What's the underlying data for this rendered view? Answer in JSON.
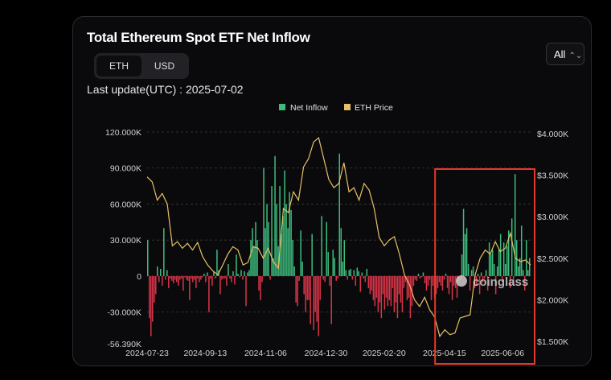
{
  "card": {
    "title": "Total Ethereum Spot ETF Net Inflow",
    "toggle": [
      "ETH",
      "USD"
    ],
    "toggle_selected": "ETH",
    "last_update": "Last update(UTC) : 2025-07-02",
    "range_select": "All",
    "watermark": "coinglass"
  },
  "chart_data": {
    "type": "bar+line",
    "legend": [
      {
        "name": "Net Inflow",
        "color": "#3dbd7d"
      },
      {
        "name": "ETH Price",
        "color": "#e6c065"
      }
    ],
    "legend_position": "top-center",
    "x_ticks": [
      "2024-07-23",
      "2024-09-13",
      "2024-11-06",
      "2024-12-30",
      "2025-02-20",
      "2025-04-15",
      "2025-06-06"
    ],
    "x_range": [
      "2024-07-23",
      "2025-07-01"
    ],
    "y_left": {
      "ticks": [
        "120.000K",
        "90.000K",
        "60.000K",
        "30.000K",
        "0",
        "-30.000K",
        "-56.390K"
      ],
      "range": [
        -56.39,
        120
      ],
      "unit": "K ETH"
    },
    "y_right": {
      "ticks": [
        "$4.000K",
        "$3.500K",
        "$3.000K",
        "$2.500K",
        "$2.000K",
        "$1.500K"
      ],
      "range": [
        1500,
        4000
      ],
      "unit": "USD"
    },
    "grid": true,
    "positive_color": "#3dbd7d",
    "negative_color": "#d93448",
    "highlight_box_color": "#e03a2a",
    "highlight_range": [
      "2025-04-08",
      "2025-07-01"
    ],
    "net_inflow": [
      30,
      -35,
      -50,
      -38,
      -22,
      -15,
      8,
      -5,
      6,
      -8,
      40,
      -3,
      5,
      -10,
      -2,
      -4,
      -6,
      -3,
      -5,
      -8,
      -3,
      -2,
      -12,
      -1,
      -3,
      -4,
      -20,
      -2,
      -5,
      -3,
      -10,
      -2,
      -5,
      -3,
      -1,
      2,
      -5,
      3,
      -30,
      -2,
      -8,
      4,
      -2,
      22,
      5,
      -15,
      -3,
      -2,
      -2,
      -8,
      10,
      -2,
      -5,
      4,
      -7,
      18,
      2,
      -1,
      5,
      -3,
      4,
      -25,
      3,
      5,
      30,
      40,
      25,
      45,
      30,
      -12,
      -20,
      -5,
      90,
      40,
      60,
      45,
      -3,
      75,
      15,
      100,
      60,
      25,
      75,
      35,
      50,
      88,
      60,
      40,
      70,
      55,
      30,
      8,
      -22,
      -25,
      -4,
      38,
      12,
      -15,
      -30,
      -20,
      -20,
      -40,
      35,
      -45,
      -30,
      -38,
      -50,
      -20,
      50,
      -3,
      -5,
      45,
      20,
      -8,
      -40,
      22,
      15,
      -4,
      -2,
      102,
      40,
      12,
      30,
      5,
      -3,
      5,
      6,
      -3,
      5,
      -8,
      7,
      4,
      -13,
      3,
      -2,
      -5,
      6,
      -10,
      -15,
      -12,
      -20,
      -25,
      -18,
      -30,
      -22,
      -35,
      -15,
      -28,
      -18,
      -25,
      -20,
      -25,
      -10,
      -30,
      -22,
      -35,
      -15,
      -22,
      -30,
      -10,
      -5,
      -20,
      -18,
      -35,
      -25,
      -8,
      -3,
      -4,
      2,
      -2,
      -1,
      3,
      -6,
      -12,
      -8,
      -3,
      -20,
      -8,
      -18,
      -15,
      -10,
      -5,
      -8,
      -12,
      -3,
      2,
      -10,
      -15,
      -5,
      -20,
      -8,
      -10,
      -18,
      -4,
      -3,
      18,
      56,
      35,
      40,
      10,
      -12,
      5,
      8,
      -10,
      -8,
      2,
      -15,
      3,
      -5,
      -2,
      5,
      -12,
      28,
      18,
      22,
      10,
      -15,
      8,
      22,
      35,
      -5,
      28,
      10,
      25,
      38,
      -10,
      48,
      -8,
      85,
      30,
      8,
      15,
      42,
      5,
      -12,
      30,
      5,
      15
    ],
    "eth_price": [
      3480,
      3420,
      3200,
      3280,
      3150,
      2650,
      2700,
      2620,
      2680,
      2600,
      2690,
      2520,
      2420,
      2350,
      2300,
      2420,
      2550,
      2640,
      2600,
      2420,
      2450,
      2640,
      2620,
      2500,
      2620,
      2460,
      2380,
      3100,
      3050,
      3300,
      3200,
      3600,
      3700,
      3900,
      3950,
      3700,
      3450,
      3350,
      3400,
      3650,
      3300,
      3350,
      3200,
      3400,
      3320,
      3100,
      2750,
      2650,
      2720,
      2760,
      2550,
      2300,
      2180,
      2000,
      1920,
      2030,
      1880,
      1790,
      1560,
      1640,
      1580,
      1600,
      1780,
      1800,
      1820,
      2300,
      2500,
      2600,
      2550,
      2700,
      2580,
      2620,
      2800,
      2500,
      2460,
      2480,
      2420
    ]
  }
}
